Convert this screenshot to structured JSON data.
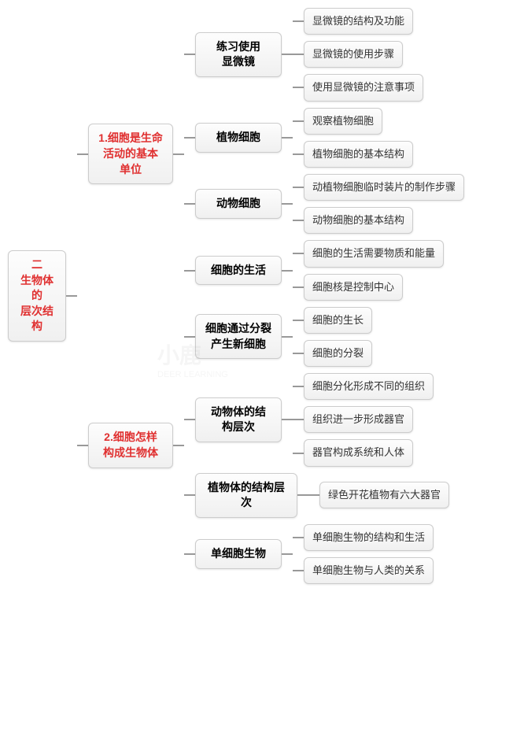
{
  "colors": {
    "accent": "#e03030",
    "node_border": "#cccccc",
    "node_bg_top": "#fdfdfd",
    "node_bg_bottom": "#f0f0f0",
    "connector": "#999999",
    "text": "#333333",
    "background": "#ffffff"
  },
  "root": {
    "line1": "二",
    "line2": "生物体的",
    "line3": "层次结构"
  },
  "level1": [
    {
      "line1": "1.细胞是生命",
      "line2": "活动的基本",
      "line3": "单位"
    },
    {
      "line1": "2.细胞怎样",
      "line2": "构成生物体"
    }
  ],
  "section1": {
    "n0": {
      "line1": "练习使用",
      "line2": "显微镜"
    },
    "n0_leaves": [
      "显微镜的结构及功能",
      "显微镜的使用步骤",
      "使用显微镜的注意事项"
    ],
    "n1": {
      "label": "植物细胞"
    },
    "n1_leaves": [
      "观察植物细胞",
      "植物细胞的基本结构"
    ],
    "n2": {
      "label": "动物细胞"
    },
    "n2_leaves": [
      "动植物细胞临时装片的制作步骤",
      "动物细胞的基本结构"
    ],
    "n3": {
      "label": "细胞的生活"
    },
    "n3_leaves": [
      "细胞的生活需要物质和能量",
      "细胞核是控制中心"
    ]
  },
  "section2": {
    "n0": {
      "line1": "细胞通过分裂",
      "line2": "产生新细胞"
    },
    "n0_leaves": [
      "细胞的生长",
      "细胞的分裂"
    ],
    "n1": {
      "line1": "动物体的结",
      "line2": "构层次"
    },
    "n1_leaves": [
      "细胞分化形成不同的组织",
      "组织进一步形成器官",
      "器官构成系统和人体"
    ],
    "n2": {
      "label": "植物体的结构层次"
    },
    "n2_leaves": [
      "绿色开花植物有六大器官"
    ],
    "n3": {
      "label": "单细胞生物"
    },
    "n3_leaves": [
      "单细胞生物的结构和生活",
      "单细胞生物与人类的关系"
    ]
  },
  "watermark": {
    "brand": "小鹿",
    "sub": "DEER LEARNING"
  }
}
